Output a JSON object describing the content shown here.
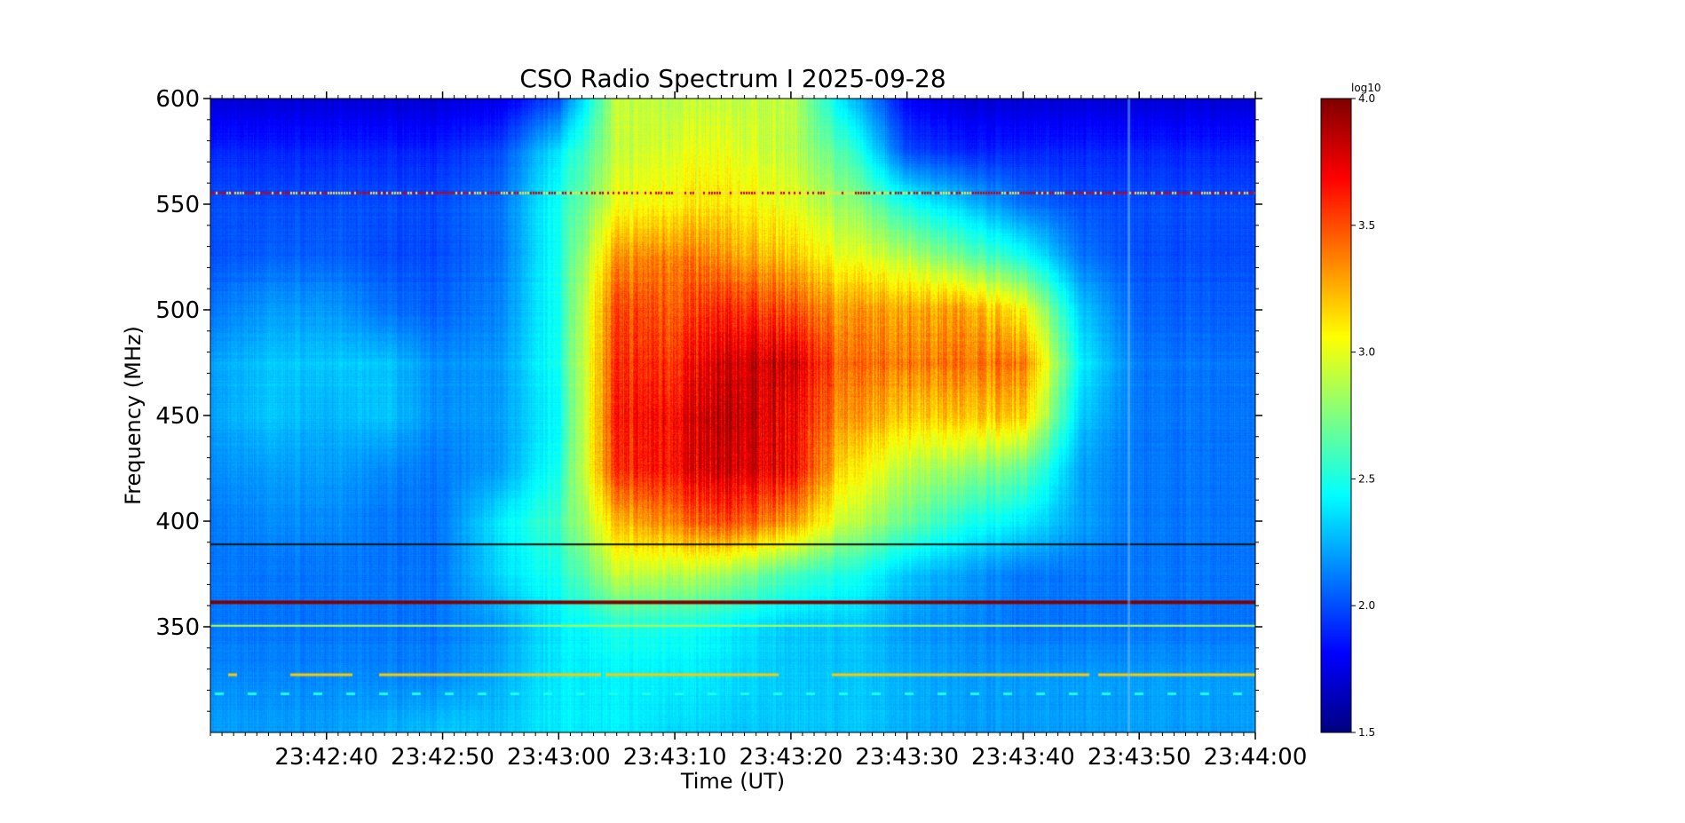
{
  "chart_data": {
    "type": "heatmap",
    "title": "CSO Radio Spectrum I 2025-09-28",
    "xlabel": "Time (UT)",
    "ylabel": "Frequency (MHz)",
    "xlim_seconds_after_23_42_00": [
      30,
      120
    ],
    "ylim": [
      300,
      600
    ],
    "x_ticks": [
      {
        "t": 40,
        "label": "23:42:40"
      },
      {
        "t": 50,
        "label": "23:42:50"
      },
      {
        "t": 60,
        "label": "23:43:00"
      },
      {
        "t": 70,
        "label": "23:43:10"
      },
      {
        "t": 80,
        "label": "23:43:20"
      },
      {
        "t": 90,
        "label": "23:43:30"
      },
      {
        "t": 100,
        "label": "23:43:40"
      },
      {
        "t": 110,
        "label": "23:43:50"
      },
      {
        "t": 120,
        "label": "23:44:00"
      }
    ],
    "y_ticks": [
      {
        "f": 350,
        "label": "350"
      },
      {
        "f": 400,
        "label": "400"
      },
      {
        "f": 450,
        "label": "450"
      },
      {
        "f": 500,
        "label": "500"
      },
      {
        "f": 550,
        "label": "550"
      },
      {
        "f": 600,
        "label": "600"
      }
    ],
    "colorbar": {
      "label": "log10",
      "range": [
        1.5,
        4.0
      ],
      "colormap": "jet",
      "ticks": [
        {
          "v": 1.5,
          "label": "1.5"
        },
        {
          "v": 2.0,
          "label": "2.0"
        },
        {
          "v": 2.5,
          "label": "2.5"
        },
        {
          "v": 3.0,
          "label": "3.0"
        },
        {
          "v": 3.5,
          "label": "3.5"
        },
        {
          "v": 4.0,
          "label": "4.0"
        }
      ]
    },
    "grid_times_seconds": [
      30,
      35,
      40,
      45,
      50,
      55,
      60,
      65,
      70,
      75,
      80,
      85,
      90,
      95,
      100,
      105,
      110,
      115,
      120
    ],
    "grid_freqs_mhz": [
      600,
      575,
      550,
      525,
      500,
      475,
      450,
      425,
      400,
      375,
      350,
      325,
      300
    ],
    "values_log10": [
      [
        1.7,
        1.7,
        1.7,
        1.7,
        1.7,
        1.75,
        2.0,
        2.9,
        2.9,
        2.9,
        2.9,
        2.3,
        1.8,
        1.7,
        1.7,
        1.7,
        1.7,
        1.7,
        1.7
      ],
      [
        1.9,
        1.9,
        1.9,
        1.9,
        1.9,
        2.0,
        2.4,
        2.9,
        3.0,
        3.0,
        2.9,
        2.6,
        2.0,
        1.9,
        1.9,
        1.9,
        1.9,
        1.9,
        1.9
      ],
      [
        2.0,
        2.0,
        2.0,
        2.0,
        2.0,
        2.1,
        2.5,
        3.0,
        3.1,
        3.1,
        3.0,
        2.8,
        2.5,
        2.3,
        2.1,
        2.0,
        2.0,
        2.0,
        2.0
      ],
      [
        2.0,
        2.05,
        2.05,
        2.0,
        2.0,
        2.1,
        2.5,
        3.3,
        3.4,
        3.3,
        3.2,
        3.0,
        2.9,
        2.7,
        2.5,
        2.1,
        2.0,
        2.0,
        2.0
      ],
      [
        2.1,
        2.2,
        2.2,
        2.1,
        2.05,
        2.15,
        2.5,
        3.5,
        3.5,
        3.6,
        3.5,
        3.3,
        3.3,
        3.3,
        3.1,
        2.3,
        2.05,
        2.05,
        2.05
      ],
      [
        2.2,
        2.3,
        2.3,
        2.3,
        2.15,
        2.2,
        2.5,
        3.55,
        3.6,
        3.8,
        3.8,
        3.4,
        3.4,
        3.4,
        3.4,
        2.4,
        2.1,
        2.1,
        2.1
      ],
      [
        2.2,
        2.3,
        2.25,
        2.3,
        2.15,
        2.2,
        2.45,
        3.6,
        3.7,
        3.85,
        3.7,
        3.3,
        3.2,
        3.2,
        3.2,
        2.3,
        2.1,
        2.1,
        2.1
      ],
      [
        2.15,
        2.2,
        2.2,
        2.15,
        2.1,
        2.2,
        2.5,
        3.55,
        3.7,
        3.8,
        3.7,
        3.1,
        2.9,
        2.8,
        2.7,
        2.2,
        2.1,
        2.1,
        2.1
      ],
      [
        2.1,
        2.15,
        2.15,
        2.1,
        2.1,
        2.4,
        2.6,
        3.2,
        3.4,
        3.5,
        3.3,
        2.9,
        2.7,
        2.5,
        2.4,
        2.2,
        2.1,
        2.1,
        2.1
      ],
      [
        2.1,
        2.1,
        2.1,
        2.1,
        2.1,
        2.35,
        2.5,
        2.9,
        2.9,
        2.8,
        2.6,
        2.5,
        2.3,
        2.2,
        2.1,
        2.1,
        2.1,
        2.1,
        2.1
      ],
      [
        2.1,
        2.1,
        2.1,
        2.1,
        2.1,
        2.2,
        2.4,
        2.5,
        2.5,
        2.4,
        2.3,
        2.3,
        2.2,
        2.15,
        2.1,
        2.1,
        2.1,
        2.1,
        2.1
      ],
      [
        2.15,
        2.15,
        2.15,
        2.15,
        2.15,
        2.25,
        2.4,
        2.4,
        2.4,
        2.35,
        2.3,
        2.3,
        2.25,
        2.2,
        2.2,
        2.2,
        2.2,
        2.2,
        2.2
      ],
      [
        2.2,
        2.2,
        2.2,
        2.25,
        2.3,
        2.3,
        2.4,
        2.4,
        2.35,
        2.3,
        2.3,
        2.3,
        2.25,
        2.2,
        2.2,
        2.2,
        2.2,
        2.2,
        2.2
      ]
    ],
    "interference_lines": [
      {
        "freq": 555.5,
        "value": 3.8,
        "kind": "dotted"
      },
      {
        "freq": 389,
        "value": 0,
        "kind": "solid-black"
      },
      {
        "freq": 362,
        "value": 4.0,
        "kind": "solid"
      },
      {
        "freq": 350.5,
        "value": 2.9,
        "kind": "solid"
      },
      {
        "freq": 327.5,
        "value": 3.2,
        "kind": "segments"
      },
      {
        "freq": 318.5,
        "value": 2.5,
        "kind": "dashes"
      }
    ]
  }
}
